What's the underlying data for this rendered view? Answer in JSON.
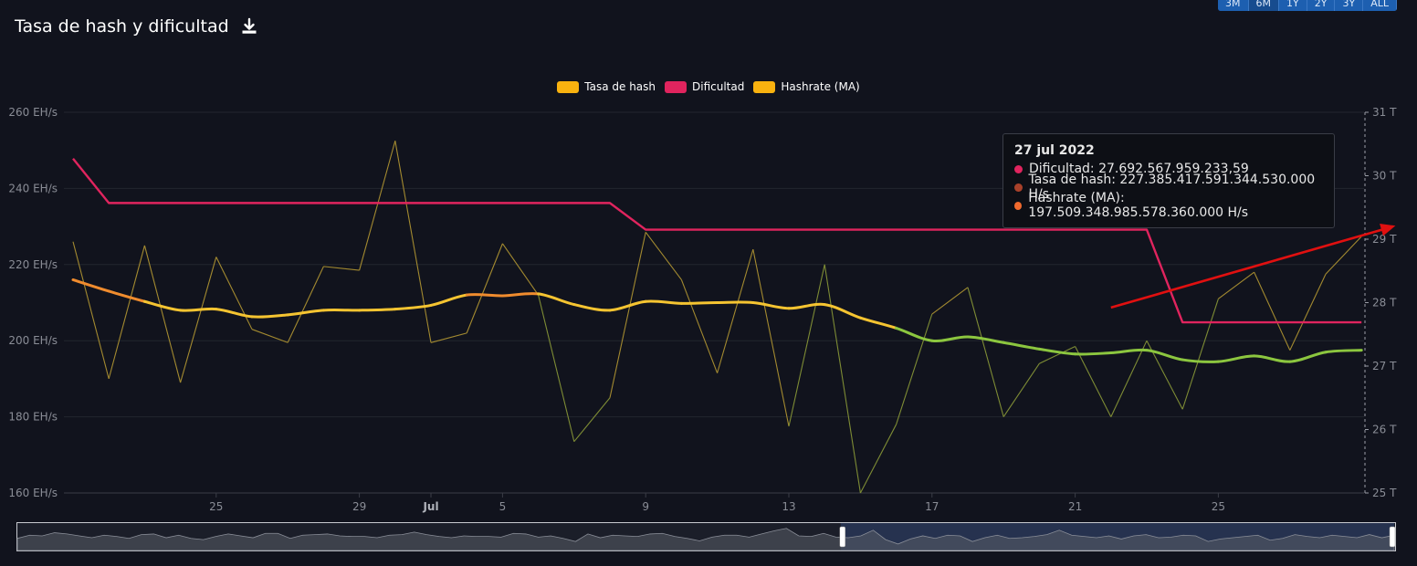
{
  "title": "Tasa de hash y dificultad",
  "icons": {
    "download": "download-icon"
  },
  "range_buttons": [
    "3M",
    "6M",
    "1Y",
    "2Y",
    "3Y",
    "ALL"
  ],
  "range_selected": "6M",
  "colors": {
    "background": "#11131d",
    "hashrate": "#b59a2b",
    "difficulty": "#e0245e",
    "ma_high": "#f5c431",
    "ma_mid": "#f08c2e",
    "ma_low": "#8cc63f",
    "annotation_arrow": "#e01010"
  },
  "legend": [
    {
      "label": "Tasa de hash",
      "color": "#f9b20f"
    },
    {
      "label": "Dificultad",
      "color": "#e0245e"
    },
    {
      "label": "Hashrate (MA)",
      "color": "#f9b20f"
    }
  ],
  "tooltip": {
    "date": "27 jul 2022",
    "rows": [
      {
        "label": "Dificultad: 27.692.567.959.233,59",
        "color": "#e0245e"
      },
      {
        "label": "Tasa de hash: 227.385.417.591.344.530.000 H/s",
        "color": "#a8412a"
      },
      {
        "label": "Hashrate (MA): 197.509.348.985.578.360.000 H/s",
        "color": "#f06a2e"
      }
    ]
  },
  "chart_data": {
    "type": "line",
    "title": "Tasa de hash y dificultad",
    "x_range": [
      "2022-06-21",
      "2022-07-27"
    ],
    "x_ticks": [
      "25",
      "29",
      "Jul",
      "5",
      "9",
      "13",
      "17",
      "21",
      "25"
    ],
    "y_left": {
      "ticks": [
        "160 EH/s",
        "180 EH/s",
        "200 EH/s",
        "220 EH/s",
        "240 EH/s",
        "260 EH/s"
      ],
      "range": [
        160,
        260
      ],
      "unit": "EH/s"
    },
    "y_right": {
      "ticks": [
        "25 T",
        "26 T",
        "27 T",
        "28 T",
        "29 T",
        "30 T",
        "31 T"
      ],
      "range": [
        25,
        31
      ],
      "unit": "T"
    },
    "grid": true,
    "legend_position": "top-center",
    "series": [
      {
        "name": "Tasa de hash",
        "axis": "left",
        "points": [
          [
            0,
            226
          ],
          [
            1,
            190
          ],
          [
            2,
            225
          ],
          [
            3,
            189
          ],
          [
            4,
            222
          ],
          [
            5,
            203
          ],
          [
            6,
            199.5
          ],
          [
            7,
            219.5
          ],
          [
            8,
            218.5
          ],
          [
            9,
            252.5
          ],
          [
            10,
            199.5
          ],
          [
            11,
            202
          ],
          [
            12,
            225.5
          ],
          [
            13,
            212
          ],
          [
            14,
            173.5
          ],
          [
            15,
            185
          ],
          [
            16,
            228.5
          ],
          [
            17,
            216
          ],
          [
            18,
            191.5
          ],
          [
            19,
            224
          ],
          [
            20,
            177.5
          ],
          [
            21,
            220
          ],
          [
            22,
            160
          ],
          [
            23,
            178
          ],
          [
            24,
            207
          ],
          [
            25,
            214
          ],
          [
            26,
            180
          ],
          [
            27,
            194
          ],
          [
            28,
            198.5
          ],
          [
            29,
            180
          ],
          [
            30,
            200
          ],
          [
            31,
            182
          ],
          [
            32,
            211
          ],
          [
            33,
            218
          ],
          [
            34,
            197.5
          ],
          [
            35,
            217.5
          ],
          [
            36,
            227.4
          ]
        ]
      },
      {
        "name": "Dificultad",
        "axis": "right",
        "points": [
          [
            0,
            30.27
          ],
          [
            1,
            29.57
          ],
          [
            15,
            29.57
          ],
          [
            16,
            29.15
          ],
          [
            29,
            29.15
          ],
          [
            30,
            29.15
          ],
          [
            31,
            27.69
          ],
          [
            36,
            27.69
          ]
        ]
      },
      {
        "name": "Hashrate (MA)",
        "axis": "left",
        "points": [
          [
            0,
            216
          ],
          [
            1,
            213
          ],
          [
            2,
            210.3
          ],
          [
            3,
            208
          ],
          [
            4,
            208.3
          ],
          [
            5,
            206.3
          ],
          [
            6,
            206.8
          ],
          [
            7,
            208
          ],
          [
            8,
            208
          ],
          [
            9,
            208.3
          ],
          [
            10,
            209.3
          ],
          [
            11,
            212
          ],
          [
            12,
            211.8
          ],
          [
            13,
            212.3
          ],
          [
            14,
            209.5
          ],
          [
            15,
            208
          ],
          [
            16,
            210.3
          ],
          [
            17,
            209.8
          ],
          [
            18,
            210
          ],
          [
            19,
            210
          ],
          [
            20,
            208.5
          ],
          [
            21,
            209.5
          ],
          [
            22,
            206
          ],
          [
            23,
            203.3
          ],
          [
            24,
            200
          ],
          [
            25,
            201
          ],
          [
            26,
            199.5
          ],
          [
            27,
            197.8
          ],
          [
            28,
            196.5
          ],
          [
            29,
            196.8
          ],
          [
            30,
            197.5
          ],
          [
            31,
            195
          ],
          [
            32,
            194.5
          ],
          [
            33,
            196
          ],
          [
            34,
            194.5
          ],
          [
            35,
            197
          ],
          [
            36,
            197.5
          ]
        ]
      }
    ],
    "annotation": {
      "type": "arrow",
      "from": [
        29,
        208.7
      ],
      "to": [
        37,
        230.2
      ]
    }
  },
  "navigator": {
    "values": [
      205,
      210,
      209,
      214,
      212,
      209,
      206,
      210,
      208,
      205,
      211,
      212,
      206,
      210,
      205,
      203,
      208,
      212,
      209,
      206,
      213,
      213,
      205,
      210,
      211,
      212,
      209,
      208,
      208,
      206,
      210,
      211,
      215,
      211,
      208,
      206,
      209,
      208,
      208,
      207,
      213,
      212,
      207,
      209,
      205,
      200,
      212,
      206,
      210,
      209,
      208,
      212,
      213,
      208,
      205,
      201,
      207,
      210,
      210,
      207,
      212,
      217,
      221,
      209,
      208,
      213,
      207,
      206,
      209,
      218,
      203,
      196,
      204,
      209,
      205,
      210,
      209,
      200,
      206,
      210,
      205,
      206,
      208,
      211,
      218,
      210,
      208,
      206,
      209,
      204,
      209,
      211,
      206,
      207,
      210,
      209,
      200,
      204,
      206,
      208,
      210,
      202,
      205,
      211,
      208,
      206,
      210,
      208,
      206,
      211,
      206,
      210
    ],
    "selection_start": 0.598,
    "selection_end": 1.0
  }
}
